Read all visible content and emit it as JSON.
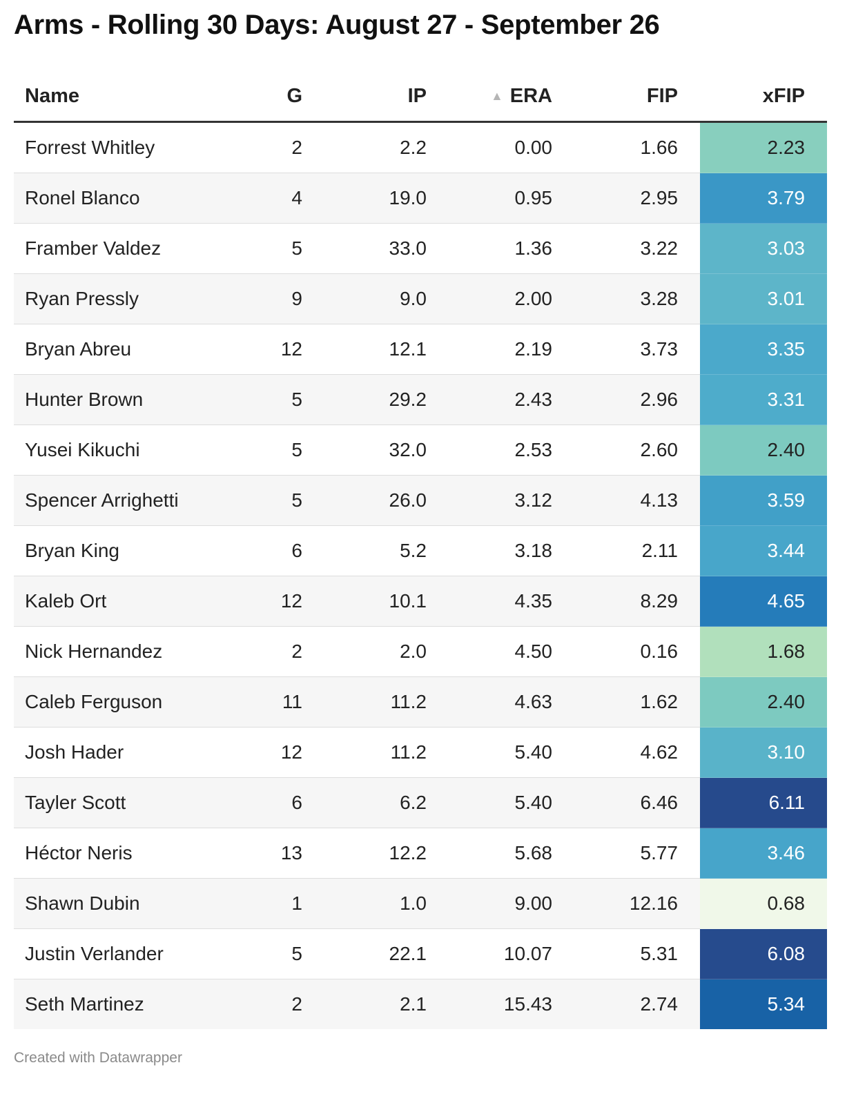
{
  "title": "Arms - Rolling 30 Days: August 27 - September 26",
  "footer": "Created with Datawrapper",
  "colors": {
    "heat_low": "#f0f8e9",
    "heat_high": "#264a8c",
    "text_dark": "#222222",
    "text_light": "#ffffff"
  },
  "chart_data": {
    "type": "table",
    "sorted_by": "ERA",
    "sort_order": "ascending",
    "heatmap_column": "xFIP",
    "columns": [
      "Name",
      "G",
      "IP",
      "ERA",
      "FIP",
      "xFIP"
    ],
    "rows": [
      {
        "name": "Forrest Whitley",
        "g": "2",
        "ip": "2.2",
        "era": "0.00",
        "fip": "1.66",
        "xfip": "2.23",
        "xfip_bg": "#88cfbe",
        "xfip_fg": "#222222"
      },
      {
        "name": "Ronel Blanco",
        "g": "4",
        "ip": "19.0",
        "era": "0.95",
        "fip": "2.95",
        "xfip": "3.79",
        "xfip_bg": "#3a97c6",
        "xfip_fg": "#ffffff"
      },
      {
        "name": "Framber Valdez",
        "g": "5",
        "ip": "33.0",
        "era": "1.36",
        "fip": "3.22",
        "xfip": "3.03",
        "xfip_bg": "#5db5c9",
        "xfip_fg": "#ffffff"
      },
      {
        "name": "Ryan Pressly",
        "g": "9",
        "ip": "9.0",
        "era": "2.00",
        "fip": "3.28",
        "xfip": "3.01",
        "xfip_bg": "#5db5c9",
        "xfip_fg": "#ffffff"
      },
      {
        "name": "Bryan Abreu",
        "g": "12",
        "ip": "12.1",
        "era": "2.19",
        "fip": "3.73",
        "xfip": "3.35",
        "xfip_bg": "#4ba9cb",
        "xfip_fg": "#ffffff"
      },
      {
        "name": "Hunter Brown",
        "g": "5",
        "ip": "29.2",
        "era": "2.43",
        "fip": "2.96",
        "xfip": "3.31",
        "xfip_bg": "#4eaccb",
        "xfip_fg": "#ffffff"
      },
      {
        "name": "Yusei Kikuchi",
        "g": "5",
        "ip": "32.0",
        "era": "2.53",
        "fip": "2.60",
        "xfip": "2.40",
        "xfip_bg": "#7dcac0",
        "xfip_fg": "#222222"
      },
      {
        "name": "Spencer Arrighetti",
        "g": "5",
        "ip": "26.0",
        "era": "3.12",
        "fip": "4.13",
        "xfip": "3.59",
        "xfip_bg": "#41a0c8",
        "xfip_fg": "#ffffff"
      },
      {
        "name": "Bryan King",
        "g": "6",
        "ip": "5.2",
        "era": "3.18",
        "fip": "2.11",
        "xfip": "3.44",
        "xfip_bg": "#48a6ca",
        "xfip_fg": "#ffffff"
      },
      {
        "name": "Kaleb Ort",
        "g": "12",
        "ip": "10.1",
        "era": "4.35",
        "fip": "8.29",
        "xfip": "4.65",
        "xfip_bg": "#257cba",
        "xfip_fg": "#ffffff"
      },
      {
        "name": "Nick Hernandez",
        "g": "2",
        "ip": "2.0",
        "era": "4.50",
        "fip": "0.16",
        "xfip": "1.68",
        "xfip_bg": "#b1e0bc",
        "xfip_fg": "#222222"
      },
      {
        "name": "Caleb Ferguson",
        "g": "11",
        "ip": "11.2",
        "era": "4.63",
        "fip": "1.62",
        "xfip": "2.40",
        "xfip_bg": "#7dcac0",
        "xfip_fg": "#222222"
      },
      {
        "name": "Josh Hader",
        "g": "12",
        "ip": "11.2",
        "era": "5.40",
        "fip": "4.62",
        "xfip": "3.10",
        "xfip_bg": "#59b3c9",
        "xfip_fg": "#ffffff"
      },
      {
        "name": "Tayler Scott",
        "g": "6",
        "ip": "6.2",
        "era": "5.40",
        "fip": "6.46",
        "xfip": "6.11",
        "xfip_bg": "#264a8c",
        "xfip_fg": "#ffffff"
      },
      {
        "name": "Héctor Neris",
        "g": "13",
        "ip": "12.2",
        "era": "5.68",
        "fip": "5.77",
        "xfip": "3.46",
        "xfip_bg": "#47a5ca",
        "xfip_fg": "#ffffff"
      },
      {
        "name": "Shawn Dubin",
        "g": "1",
        "ip": "1.0",
        "era": "9.00",
        "fip": "12.16",
        "xfip": "0.68",
        "xfip_bg": "#f0f8e9",
        "xfip_fg": "#222222"
      },
      {
        "name": "Justin Verlander",
        "g": "5",
        "ip": "22.1",
        "era": "10.07",
        "fip": "5.31",
        "xfip": "6.08",
        "xfip_bg": "#264b8d",
        "xfip_fg": "#ffffff"
      },
      {
        "name": "Seth Martinez",
        "g": "2",
        "ip": "2.1",
        "era": "15.43",
        "fip": "2.74",
        "xfip": "5.34",
        "xfip_bg": "#1862a6",
        "xfip_fg": "#ffffff"
      }
    ]
  }
}
